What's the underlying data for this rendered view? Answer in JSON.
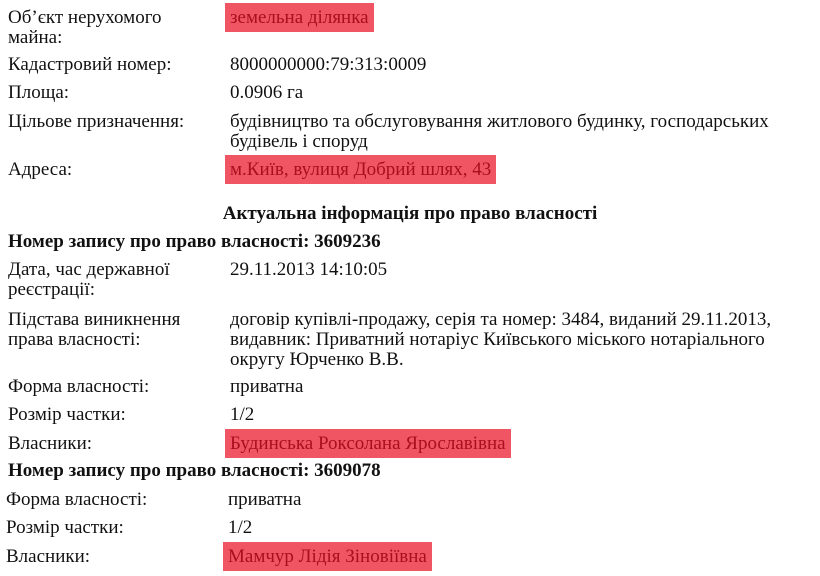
{
  "property": {
    "object": {
      "label": "Об’єкт нерухомого майна:",
      "value": "земельна ділянка"
    },
    "cadastral": {
      "label": "Кадастровий номер:",
      "value": "8000000000:79:313:0009"
    },
    "area": {
      "label": "Площа:",
      "value": "0.0906 га"
    },
    "purpose": {
      "label": "Цільове призначення:",
      "value": "будівництво та обслуговування житлового будинку, господарських будівель і споруд"
    },
    "address": {
      "label": "Адреса:",
      "value": "м.Київ, вулиця Добрий шлях, 43"
    }
  },
  "section_title": "Актуальна інформація про право власності",
  "records": [
    {
      "title": "Номер запису про право власності: 3609236",
      "date": {
        "label": "Дата, час державної реєстрації:",
        "value": "29.11.2013 14:10:05"
      },
      "basis": {
        "label": "Підстава виникнення права власності:",
        "value": "договір купівлі-продажу, серія та номер: 3484, виданий 29.11.2013, видавник: Приватний нотаріус Київського міського нотаріального округу Юрченко В.В."
      },
      "form": {
        "label": "Форма власності:",
        "value": "приватна"
      },
      "share": {
        "label": "Розмір частки:",
        "value": "1/2"
      },
      "owners": {
        "label": "Власники:",
        "value": "Будинська Роксолана Ярославівна"
      }
    },
    {
      "title": "Номер запису про право власності: 3609078",
      "form": {
        "label": "Форма власності:",
        "value": "приватна"
      },
      "share": {
        "label": "Розмір частки:",
        "value": "1/2"
      },
      "owners": {
        "label": "Власники:",
        "value": "Мамчур Лідія Зіновіївна"
      }
    }
  ],
  "highlight_color": "#ef5563"
}
